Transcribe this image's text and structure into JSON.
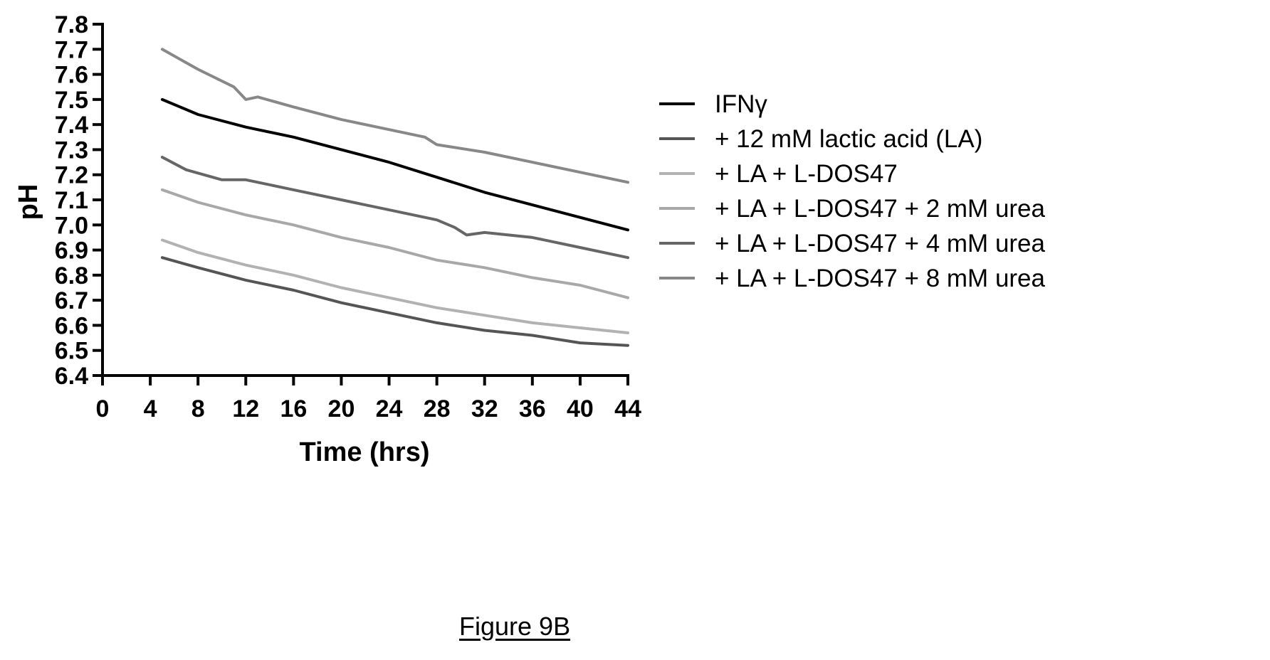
{
  "figure_label": "Figure 9B",
  "chart_data": {
    "type": "line",
    "title": "",
    "xlabel": "Time (hrs)",
    "ylabel": "pH",
    "xlim": [
      0,
      44
    ],
    "ylim": [
      6.4,
      7.8
    ],
    "xticks": [
      "0",
      "4",
      "8",
      "12",
      "16",
      "20",
      "24",
      "28",
      "32",
      "36",
      "40",
      "44"
    ],
    "yticks": [
      "6.4",
      "6.5",
      "6.6",
      "6.7",
      "6.8",
      "6.9",
      "7.0",
      "7.1",
      "7.2",
      "7.3",
      "7.4",
      "7.5",
      "7.6",
      "7.7",
      "7.8"
    ],
    "grid": false,
    "legend_position": "right",
    "series": [
      {
        "name": "IFNγ",
        "color": "#000000",
        "x": [
          5,
          8,
          12,
          16,
          20,
          24,
          28,
          32,
          36,
          40,
          44
        ],
        "y": [
          7.5,
          7.44,
          7.39,
          7.35,
          7.3,
          7.25,
          7.19,
          7.13,
          7.08,
          7.03,
          6.98
        ]
      },
      {
        "name": "+ 12 mM lactic acid (LA)",
        "color": "#555555",
        "x": [
          5,
          8,
          12,
          16,
          20,
          24,
          28,
          32,
          36,
          40,
          44
        ],
        "y": [
          6.87,
          6.83,
          6.78,
          6.74,
          6.69,
          6.65,
          6.61,
          6.58,
          6.56,
          6.53,
          6.52
        ]
      },
      {
        "name": "+ LA + L-DOS47",
        "color": "#b2b2b2",
        "x": [
          5,
          8,
          12,
          16,
          20,
          24,
          28,
          32,
          36,
          40,
          44
        ],
        "y": [
          6.94,
          6.89,
          6.84,
          6.8,
          6.75,
          6.71,
          6.67,
          6.64,
          6.61,
          6.59,
          6.57
        ]
      },
      {
        "name": "+ LA + L-DOS47 + 2 mM urea",
        "color": "#a8a8a8",
        "x": [
          5,
          8,
          12,
          16,
          20,
          24,
          28,
          32,
          36,
          40,
          44
        ],
        "y": [
          7.14,
          7.09,
          7.04,
          7.0,
          6.95,
          6.91,
          6.86,
          6.83,
          6.79,
          6.76,
          6.71
        ]
      },
      {
        "name": "+ LA + L-DOS47 + 4 mM urea",
        "color": "#666666",
        "x": [
          5,
          7,
          10,
          12,
          16,
          20,
          24,
          28,
          29.5,
          30.5,
          32,
          36,
          40,
          44
        ],
        "y": [
          7.27,
          7.22,
          7.18,
          7.18,
          7.14,
          7.1,
          7.06,
          7.02,
          6.99,
          6.96,
          6.97,
          6.95,
          6.91,
          6.87
        ]
      },
      {
        "name": "+ LA + L-DOS47 + 8 mM urea",
        "color": "#888888",
        "x": [
          5,
          8,
          11,
          12,
          13,
          16,
          20,
          24,
          27,
          28,
          32,
          36,
          40,
          44
        ],
        "y": [
          7.7,
          7.62,
          7.55,
          7.5,
          7.51,
          7.47,
          7.42,
          7.38,
          7.35,
          7.32,
          7.29,
          7.25,
          7.21,
          7.17
        ]
      }
    ]
  }
}
